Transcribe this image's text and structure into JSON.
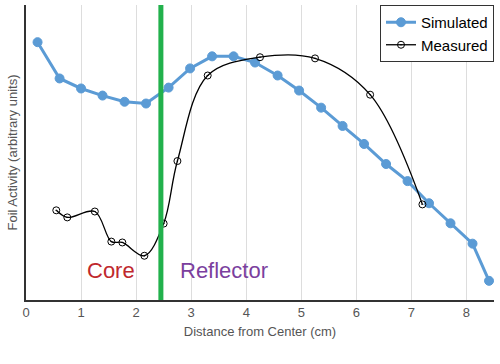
{
  "chart_data": {
    "type": "line",
    "x_label": "Distance from Center (cm)",
    "y_label": "Foil Activity (arbitrary units)",
    "xlim": [
      0,
      8.5
    ],
    "xticks": [
      0,
      1,
      2,
      3,
      4,
      5,
      6,
      7,
      8
    ],
    "ylim": [
      0,
      100
    ],
    "grid": "x",
    "tick_labels": "x",
    "legend": "top right",
    "series": [
      {
        "name": "Simulated",
        "color": "#5b9bd5",
        "marker": "circle",
        "line_style": "solid",
        "x": [
          0.21,
          0.61,
          1.0,
          1.39,
          1.79,
          2.18,
          2.59,
          2.98,
          3.38,
          3.77,
          4.16,
          4.57,
          4.96,
          5.36,
          5.75,
          6.14,
          6.54,
          6.93,
          7.32,
          7.71,
          8.11,
          8.41
        ],
        "values": [
          87.4,
          75.1,
          71.7,
          69.3,
          67.2,
          66.6,
          72.0,
          78.5,
          82.6,
          82.6,
          80.5,
          76.1,
          71.0,
          65.2,
          59.0,
          52.9,
          46.1,
          40.3,
          32.8,
          26.0,
          19.1,
          6.5
        ]
      },
      {
        "name": "Measured",
        "color": "#000000",
        "marker": "circle-open-dot",
        "line_style": "spline",
        "x": [
          0.55,
          0.75,
          1.25,
          1.55,
          1.75,
          2.15,
          2.5,
          2.75,
          3.3,
          4.25,
          5.25,
          6.25,
          7.2
        ],
        "values": [
          30.4,
          28.0,
          30.0,
          19.8,
          19.5,
          15.0,
          25.9,
          47.1,
          76.1,
          82.3,
          81.9,
          69.6,
          32.4
        ]
      }
    ],
    "boundary": {
      "x": 2.45,
      "color": "#22b14c"
    },
    "annotations": [
      {
        "text": "Core",
        "x": 1.55,
        "y": 10,
        "color": "#c0282d"
      },
      {
        "text": "Reflector",
        "x": 3.6,
        "y": 10,
        "color": "#7b3f9e"
      }
    ]
  }
}
